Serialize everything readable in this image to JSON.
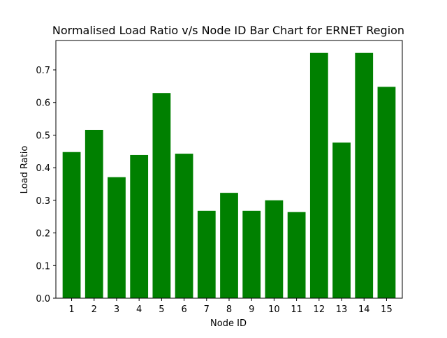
{
  "chart_data": {
    "type": "bar",
    "title": "Normalised Load Ratio v/s Node ID Bar Chart for ERNET Region",
    "xlabel": "Node ID",
    "ylabel": "Load Ratio",
    "categories": [
      "1",
      "2",
      "3",
      "4",
      "5",
      "6",
      "7",
      "8",
      "9",
      "10",
      "11",
      "12",
      "13",
      "14",
      "15"
    ],
    "values": [
      0.448,
      0.516,
      0.371,
      0.439,
      0.629,
      0.443,
      0.268,
      0.323,
      0.268,
      0.3,
      0.264,
      0.752,
      0.477,
      0.752,
      0.648
    ],
    "ylim": [
      0,
      0.79
    ],
    "yticks": [
      "0.0",
      "0.1",
      "0.2",
      "0.3",
      "0.4",
      "0.5",
      "0.6",
      "0.7"
    ],
    "bar_color": "#008000",
    "grid": false,
    "legend": "none"
  }
}
